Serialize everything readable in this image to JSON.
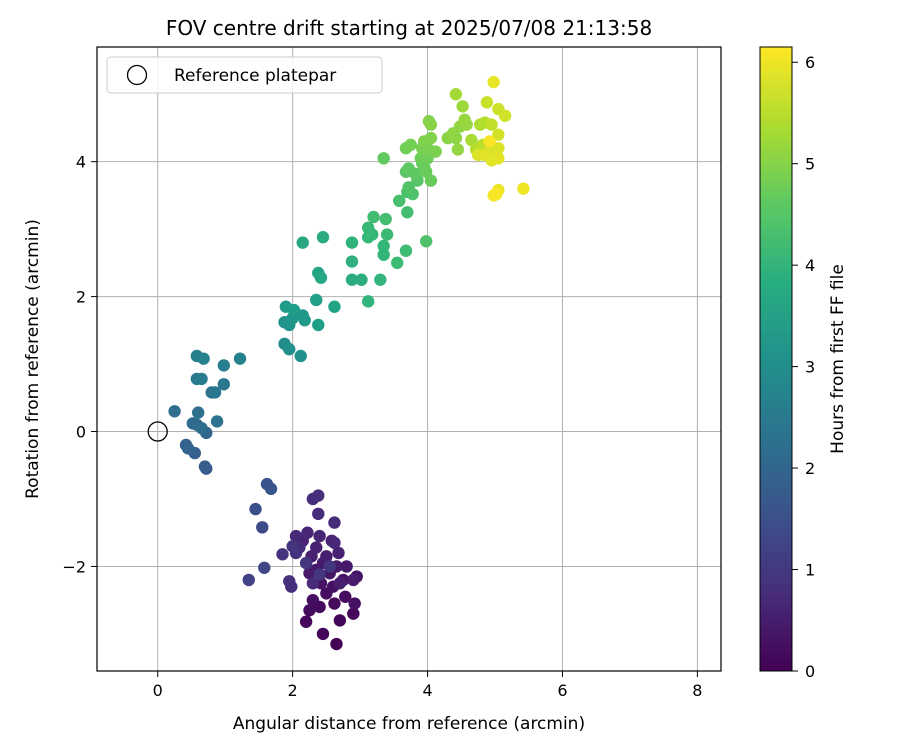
{
  "chart_data": {
    "type": "scatter",
    "title": "FOV centre drift starting at 2025/07/08 21:13:58",
    "xlabel": "Angular distance from reference (arcmin)",
    "ylabel": "Rotation from reference (arcmin)",
    "xlim": [
      -0.9,
      8.35
    ],
    "ylim": [
      -3.55,
      5.7
    ],
    "xticks": [
      0,
      2,
      4,
      6,
      8
    ],
    "yticks": [
      -2,
      0,
      2,
      4
    ],
    "xtick_labels": [
      "0",
      "2",
      "4",
      "6",
      "8"
    ],
    "ytick_labels": [
      "−2",
      "0",
      "2",
      "4"
    ],
    "grid": true,
    "legend": {
      "position": "top-left",
      "entries": [
        {
          "label": "Reference platepar",
          "marker": "open-circle"
        }
      ]
    },
    "reference_point": {
      "x": 0,
      "y": 0
    },
    "colorbar": {
      "label": "Hours from first FF file",
      "colormap": "viridis",
      "range": [
        0,
        6.15
      ],
      "ticks": [
        0,
        1,
        2,
        3,
        4,
        5,
        6
      ],
      "tick_labels": [
        "0",
        "1",
        "2",
        "3",
        "4",
        "5",
        "6"
      ]
    },
    "points": [
      {
        "x": 2.65,
        "y": -3.15,
        "t": 0.02
      },
      {
        "x": 2.45,
        "y": -3.0,
        "t": 0.05
      },
      {
        "x": 2.7,
        "y": -2.8,
        "t": 0.08
      },
      {
        "x": 2.9,
        "y": -2.7,
        "t": 0.1
      },
      {
        "x": 2.2,
        "y": -2.82,
        "t": 0.12
      },
      {
        "x": 2.4,
        "y": -2.6,
        "t": 0.14
      },
      {
        "x": 2.62,
        "y": -2.55,
        "t": 0.16
      },
      {
        "x": 2.25,
        "y": -2.65,
        "t": 0.18
      },
      {
        "x": 2.78,
        "y": -2.45,
        "t": 0.2
      },
      {
        "x": 2.5,
        "y": -2.4,
        "t": 0.22
      },
      {
        "x": 2.3,
        "y": -2.5,
        "t": 0.24
      },
      {
        "x": 2.92,
        "y": -2.55,
        "t": 0.26
      },
      {
        "x": 2.6,
        "y": -2.3,
        "t": 0.28
      },
      {
        "x": 2.42,
        "y": -2.25,
        "t": 0.3
      },
      {
        "x": 2.75,
        "y": -2.2,
        "t": 0.32
      },
      {
        "x": 2.95,
        "y": -2.15,
        "t": 0.34
      },
      {
        "x": 2.55,
        "y": -2.1,
        "t": 0.36
      },
      {
        "x": 2.35,
        "y": -2.05,
        "t": 0.38
      },
      {
        "x": 2.8,
        "y": -2.0,
        "t": 0.4
      },
      {
        "x": 2.65,
        "y": -2.0,
        "t": 0.42
      },
      {
        "x": 2.25,
        "y": -2.1,
        "t": 0.44
      },
      {
        "x": 2.45,
        "y": -1.95,
        "t": 0.46
      },
      {
        "x": 2.9,
        "y": -2.2,
        "t": 0.48
      },
      {
        "x": 2.7,
        "y": -2.25,
        "t": 0.5
      },
      {
        "x": 2.5,
        "y": -1.85,
        "t": 0.52
      },
      {
        "x": 2.28,
        "y": -1.85,
        "t": 0.54
      },
      {
        "x": 2.68,
        "y": -1.8,
        "t": 0.56
      },
      {
        "x": 2.35,
        "y": -1.72,
        "t": 0.58
      },
      {
        "x": 2.58,
        "y": -1.62,
        "t": 0.6
      },
      {
        "x": 2.15,
        "y": -1.62,
        "t": 0.62
      },
      {
        "x": 2.4,
        "y": -1.55,
        "t": 0.64
      },
      {
        "x": 2.22,
        "y": -1.5,
        "t": 0.66
      },
      {
        "x": 2.62,
        "y": -1.65,
        "t": 0.68
      },
      {
        "x": 2.05,
        "y": -1.55,
        "t": 0.7
      },
      {
        "x": 2.3,
        "y": -2.25,
        "t": 0.72
      },
      {
        "x": 2.1,
        "y": -1.72,
        "t": 0.74
      },
      {
        "x": 2.62,
        "y": -1.35,
        "t": 0.76
      },
      {
        "x": 2.38,
        "y": -1.22,
        "t": 0.78
      },
      {
        "x": 2.3,
        "y": -1.0,
        "t": 0.8
      },
      {
        "x": 2.38,
        "y": -0.95,
        "t": 0.82
      },
      {
        "x": 1.98,
        "y": -2.3,
        "t": 0.84
      },
      {
        "x": 1.95,
        "y": -2.22,
        "t": 0.86
      },
      {
        "x": 2.05,
        "y": -1.8,
        "t": 0.88
      },
      {
        "x": 1.85,
        "y": -1.82,
        "t": 0.9
      },
      {
        "x": 2.0,
        "y": -1.7,
        "t": 0.92
      },
      {
        "x": 2.2,
        "y": -1.95,
        "t": 0.94
      },
      {
        "x": 2.4,
        "y": -2.12,
        "t": 0.96
      },
      {
        "x": 2.55,
        "y": -2.0,
        "t": 0.98
      },
      {
        "x": 1.35,
        "y": -2.2,
        "t": 1.2
      },
      {
        "x": 1.58,
        "y": -2.02,
        "t": 1.3
      },
      {
        "x": 1.55,
        "y": -1.42,
        "t": 1.4
      },
      {
        "x": 1.45,
        "y": -1.15,
        "t": 1.5
      },
      {
        "x": 1.62,
        "y": -0.78,
        "t": 1.6
      },
      {
        "x": 1.68,
        "y": -0.85,
        "t": 1.65
      },
      {
        "x": 0.72,
        "y": -0.55,
        "t": 1.75
      },
      {
        "x": 0.7,
        "y": -0.52,
        "t": 1.8
      },
      {
        "x": 0.55,
        "y": -0.32,
        "t": 1.85
      },
      {
        "x": 0.42,
        "y": -0.2,
        "t": 1.9
      },
      {
        "x": 0.45,
        "y": -0.25,
        "t": 1.95
      },
      {
        "x": 0.72,
        "y": -0.02,
        "t": 2.0
      },
      {
        "x": 0.58,
        "y": 0.1,
        "t": 2.05
      },
      {
        "x": 0.52,
        "y": 0.12,
        "t": 2.1
      },
      {
        "x": 0.65,
        "y": 0.05,
        "t": 2.15
      },
      {
        "x": 0.25,
        "y": 0.3,
        "t": 2.2
      },
      {
        "x": 0.6,
        "y": 0.28,
        "t": 2.25
      },
      {
        "x": 0.88,
        "y": 0.15,
        "t": 2.3
      },
      {
        "x": 0.8,
        "y": 0.58,
        "t": 2.35
      },
      {
        "x": 0.85,
        "y": 0.58,
        "t": 2.4
      },
      {
        "x": 0.98,
        "y": 0.7,
        "t": 2.45
      },
      {
        "x": 0.58,
        "y": 0.78,
        "t": 2.5
      },
      {
        "x": 0.65,
        "y": 0.78,
        "t": 2.55
      },
      {
        "x": 0.98,
        "y": 0.98,
        "t": 2.6
      },
      {
        "x": 0.58,
        "y": 1.12,
        "t": 2.65
      },
      {
        "x": 0.68,
        "y": 1.08,
        "t": 2.7
      },
      {
        "x": 1.22,
        "y": 1.08,
        "t": 2.75
      },
      {
        "x": 1.88,
        "y": 1.3,
        "t": 3.0
      },
      {
        "x": 1.95,
        "y": 1.22,
        "t": 3.05
      },
      {
        "x": 2.12,
        "y": 1.12,
        "t": 3.1
      },
      {
        "x": 1.88,
        "y": 1.62,
        "t": 3.15
      },
      {
        "x": 1.95,
        "y": 1.58,
        "t": 3.2
      },
      {
        "x": 2.0,
        "y": 1.68,
        "t": 3.22
      },
      {
        "x": 2.15,
        "y": 1.72,
        "t": 3.25
      },
      {
        "x": 2.18,
        "y": 1.65,
        "t": 3.3
      },
      {
        "x": 1.9,
        "y": 1.85,
        "t": 3.35
      },
      {
        "x": 2.02,
        "y": 1.8,
        "t": 3.4
      },
      {
        "x": 2.38,
        "y": 1.58,
        "t": 3.45
      },
      {
        "x": 2.35,
        "y": 1.95,
        "t": 3.5
      },
      {
        "x": 2.62,
        "y": 1.85,
        "t": 3.55
      },
      {
        "x": 2.38,
        "y": 2.35,
        "t": 3.6
      },
      {
        "x": 2.42,
        "y": 2.28,
        "t": 3.65
      },
      {
        "x": 2.15,
        "y": 2.8,
        "t": 3.7
      },
      {
        "x": 2.45,
        "y": 2.88,
        "t": 3.75
      },
      {
        "x": 2.88,
        "y": 2.25,
        "t": 3.8
      },
      {
        "x": 3.02,
        "y": 2.25,
        "t": 3.85
      },
      {
        "x": 2.88,
        "y": 2.52,
        "t": 3.9
      },
      {
        "x": 2.88,
        "y": 2.8,
        "t": 3.95
      },
      {
        "x": 3.12,
        "y": 1.93,
        "t": 4.0
      },
      {
        "x": 3.3,
        "y": 2.25,
        "t": 4.02
      },
      {
        "x": 3.35,
        "y": 2.62,
        "t": 4.05
      },
      {
        "x": 3.35,
        "y": 2.75,
        "t": 4.08
      },
      {
        "x": 3.12,
        "y": 2.88,
        "t": 4.1
      },
      {
        "x": 3.18,
        "y": 2.92,
        "t": 4.12
      },
      {
        "x": 3.12,
        "y": 3.02,
        "t": 4.15
      },
      {
        "x": 3.4,
        "y": 2.92,
        "t": 4.18
      },
      {
        "x": 3.55,
        "y": 2.5,
        "t": 4.2
      },
      {
        "x": 3.68,
        "y": 2.68,
        "t": 4.22
      },
      {
        "x": 3.2,
        "y": 3.18,
        "t": 4.25
      },
      {
        "x": 3.38,
        "y": 3.15,
        "t": 4.28
      },
      {
        "x": 3.7,
        "y": 3.25,
        "t": 4.3
      },
      {
        "x": 3.58,
        "y": 3.42,
        "t": 4.35
      },
      {
        "x": 3.7,
        "y": 3.55,
        "t": 4.38
      },
      {
        "x": 3.78,
        "y": 3.52,
        "t": 4.4
      },
      {
        "x": 3.98,
        "y": 2.82,
        "t": 4.42
      },
      {
        "x": 3.72,
        "y": 3.62,
        "t": 4.45
      },
      {
        "x": 3.85,
        "y": 3.72,
        "t": 4.5
      },
      {
        "x": 3.68,
        "y": 3.85,
        "t": 4.55
      },
      {
        "x": 3.82,
        "y": 3.82,
        "t": 4.6
      },
      {
        "x": 3.72,
        "y": 3.9,
        "t": 4.62
      },
      {
        "x": 3.35,
        "y": 4.05,
        "t": 4.65
      },
      {
        "x": 3.92,
        "y": 3.98,
        "t": 4.68
      },
      {
        "x": 3.95,
        "y": 3.92,
        "t": 4.7
      },
      {
        "x": 4.05,
        "y": 3.72,
        "t": 4.72
      },
      {
        "x": 3.98,
        "y": 3.85,
        "t": 4.75
      },
      {
        "x": 3.9,
        "y": 4.05,
        "t": 4.78
      },
      {
        "x": 4.0,
        "y": 4.05,
        "t": 4.8
      },
      {
        "x": 3.68,
        "y": 4.2,
        "t": 4.82
      },
      {
        "x": 3.75,
        "y": 4.25,
        "t": 4.85
      },
      {
        "x": 3.92,
        "y": 4.2,
        "t": 4.88
      },
      {
        "x": 4.0,
        "y": 4.2,
        "t": 4.9
      },
      {
        "x": 4.12,
        "y": 4.15,
        "t": 4.92
      },
      {
        "x": 3.95,
        "y": 4.3,
        "t": 4.95
      },
      {
        "x": 4.05,
        "y": 4.35,
        "t": 4.98
      },
      {
        "x": 4.02,
        "y": 4.6,
        "t": 5.0
      },
      {
        "x": 4.05,
        "y": 4.55,
        "t": 5.02
      },
      {
        "x": 4.3,
        "y": 4.35,
        "t": 5.05
      },
      {
        "x": 4.42,
        "y": 4.35,
        "t": 5.08
      },
      {
        "x": 4.38,
        "y": 4.42,
        "t": 5.1
      },
      {
        "x": 4.48,
        "y": 4.52,
        "t": 5.12
      },
      {
        "x": 4.45,
        "y": 4.18,
        "t": 5.15
      },
      {
        "x": 4.58,
        "y": 4.55,
        "t": 5.18
      },
      {
        "x": 4.55,
        "y": 4.62,
        "t": 5.2
      },
      {
        "x": 4.52,
        "y": 4.82,
        "t": 5.25
      },
      {
        "x": 4.42,
        "y": 5.0,
        "t": 5.3
      },
      {
        "x": 4.65,
        "y": 4.32,
        "t": 5.35
      },
      {
        "x": 4.78,
        "y": 4.55,
        "t": 5.4
      },
      {
        "x": 4.85,
        "y": 4.58,
        "t": 5.45
      },
      {
        "x": 4.72,
        "y": 4.18,
        "t": 5.5
      },
      {
        "x": 4.82,
        "y": 4.25,
        "t": 5.55
      },
      {
        "x": 4.95,
        "y": 4.55,
        "t": 5.6
      },
      {
        "x": 4.88,
        "y": 4.88,
        "t": 5.65
      },
      {
        "x": 5.05,
        "y": 4.78,
        "t": 5.7
      },
      {
        "x": 5.15,
        "y": 4.68,
        "t": 5.72
      },
      {
        "x": 5.05,
        "y": 4.4,
        "t": 5.75
      },
      {
        "x": 4.92,
        "y": 4.15,
        "t": 5.8
      },
      {
        "x": 5.05,
        "y": 4.2,
        "t": 5.82
      },
      {
        "x": 4.75,
        "y": 4.1,
        "t": 5.85
      },
      {
        "x": 4.85,
        "y": 4.1,
        "t": 5.88
      },
      {
        "x": 4.95,
        "y": 4.02,
        "t": 5.9
      },
      {
        "x": 5.05,
        "y": 4.05,
        "t": 5.92
      },
      {
        "x": 4.98,
        "y": 5.18,
        "t": 5.95
      },
      {
        "x": 5.05,
        "y": 3.58,
        "t": 5.98
      },
      {
        "x": 5.42,
        "y": 3.6,
        "t": 6.02
      },
      {
        "x": 4.98,
        "y": 3.5,
        "t": 6.05
      },
      {
        "x": 5.02,
        "y": 3.52,
        "t": 6.08
      },
      {
        "x": 4.92,
        "y": 4.3,
        "t": 6.1
      }
    ]
  }
}
